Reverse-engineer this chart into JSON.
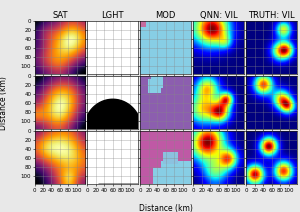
{
  "col_titles": [
    "SAT",
    "LGHT",
    "MOD",
    "QNN: VIL",
    "TRUTH: VIL"
  ],
  "row_count": 3,
  "col_count": 5,
  "axis_ticks": [
    0,
    20,
    40,
    60,
    80,
    100
  ],
  "axis_lim": [
    0,
    120
  ],
  "xlabel": "Distance (km)",
  "ylabel": "Distance (km)",
  "fig_bg": "#e8e8e8",
  "sat_cmap": "inferno",
  "qnn_cmap": "jet",
  "truth_cmap": "jet",
  "lght_bg": "#ffffff",
  "grid_color": "#888888",
  "grid_lw": 0.4,
  "title_fontsize": 6,
  "tick_fontsize": 4,
  "label_fontsize": 5.5
}
